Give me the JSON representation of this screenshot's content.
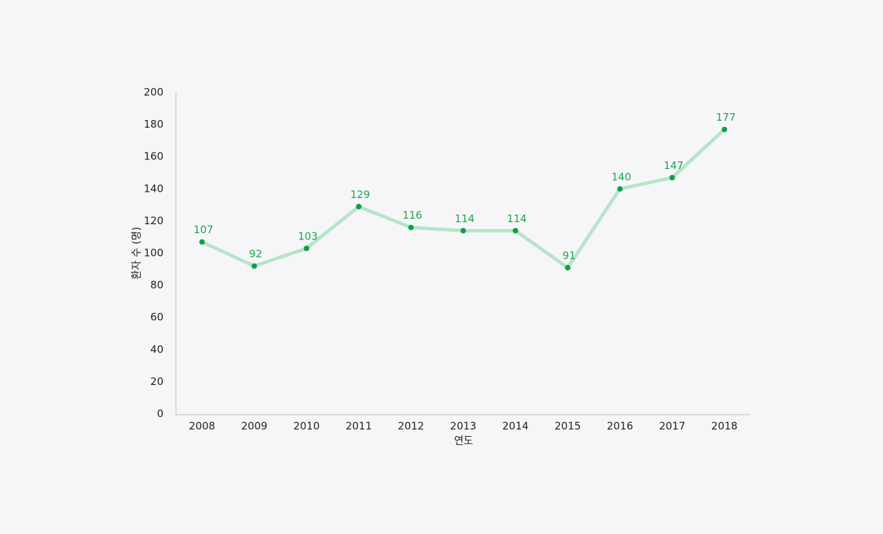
{
  "chart_data": {
    "type": "line",
    "x_label": "연도",
    "y_label": "환자 수 (명)",
    "categories": [
      "2008",
      "2009",
      "2010",
      "2011",
      "2012",
      "2013",
      "2014",
      "2015",
      "2016",
      "2017",
      "2018"
    ],
    "values": [
      107,
      92,
      103,
      129,
      116,
      114,
      114,
      91,
      140,
      147,
      177
    ],
    "color": "#b4e5c9",
    "marker_color": "#0ea04a",
    "label_color": "#1aa64f",
    "ylim": [
      0,
      200
    ],
    "yticks": [
      0,
      20,
      40,
      60,
      80,
      100,
      120,
      140,
      160,
      180,
      200
    ],
    "grid": false
  }
}
